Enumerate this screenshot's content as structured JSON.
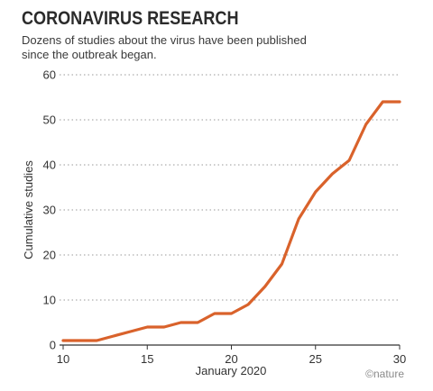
{
  "header": {
    "title": "CORONAVIRUS RESEARCH",
    "subtitle": "Dozens of studies about the virus have been published since the outbreak began."
  },
  "credit": "©nature",
  "colors": {
    "line": "#d9622b",
    "grid": "#9a9a9a",
    "axis": "#333333",
    "text": "#333333"
  },
  "chart_data": {
    "type": "line",
    "title": "CORONAVIRUS RESEARCH",
    "subtitle": "Dozens of studies about the virus have been published since the outbreak began.",
    "xlabel": "January 2020",
    "ylabel": "Cumulative studies",
    "xlim": [
      10,
      30
    ],
    "ylim": [
      0,
      60
    ],
    "xticks": [
      10,
      15,
      20,
      25,
      30
    ],
    "yticks": [
      0,
      10,
      20,
      30,
      40,
      50,
      60
    ],
    "grid": "horizontal dotted",
    "legend": "none",
    "series": [
      {
        "x": [
          10,
          11,
          12,
          13,
          14,
          15,
          16,
          17,
          18,
          19,
          20,
          21,
          22,
          23,
          24,
          25,
          26,
          27,
          28,
          29,
          30
        ],
        "y": [
          1,
          1,
          1,
          2,
          3,
          4,
          4,
          5,
          5,
          7,
          7,
          9,
          13,
          18,
          28,
          34,
          38,
          41,
          49,
          54,
          54
        ]
      }
    ]
  }
}
